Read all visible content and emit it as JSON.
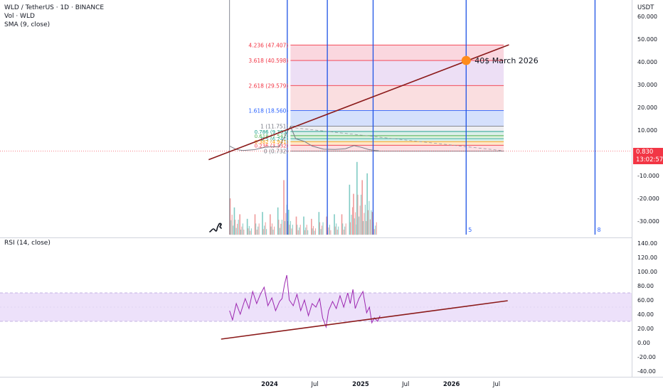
{
  "header": {
    "symbol_line": "WLD / TetherUS · 1D · BINANCE",
    "vol_line": "Vol · WLD",
    "sma_line": "SMA (9, close)",
    "currency": "USDT"
  },
  "price_badge": {
    "price": "0.830",
    "countdown": "13:02:57"
  },
  "rsi_header": "RSI (14, close)",
  "colors": {
    "fib_red": "#f23645",
    "fib_blue": "#2962ff",
    "trend": "#8b1a1a",
    "price": "#787b86",
    "vline": "#1e53e5",
    "marker": "#ff8c1a",
    "rsi": "#9c27b0",
    "rsi_band": "#ede1fa"
  },
  "chart_data": [
    {
      "type": "line",
      "title": "WLD / TetherUS · 1D · BINANCE",
      "yunit": "USDT",
      "ylim": [
        -36,
        65
      ],
      "yticks": [
        "60.000",
        "50.000",
        "40.000",
        "30.000",
        "20.000",
        "10.000",
        "0.830",
        "-10.000",
        "-20.000",
        "-30.000"
      ],
      "ytick_values": [
        60,
        50,
        40,
        30,
        20,
        10,
        0.83,
        -10,
        -20,
        -30
      ],
      "xticks": [
        "2024",
        "Jul",
        "2025",
        "Jul",
        "2026",
        "Jul"
      ],
      "xtick_dates": [
        "2024-01-01",
        "2024-07-01",
        "2025-01-01",
        "2025-07-01",
        "2026-01-01",
        "2026-07-01"
      ],
      "last_price": 0.83,
      "price_series": {
        "x": [
          "2023-07-24",
          "2023-08-20",
          "2023-09-15",
          "2023-11-01",
          "2023-12-15",
          "2024-01-20",
          "2024-02-10",
          "2024-03-10",
          "2024-03-25",
          "2024-04-15",
          "2024-05-20",
          "2024-06-20",
          "2024-08-05",
          "2024-09-20",
          "2024-11-01",
          "2024-12-05",
          "2025-01-05",
          "2025-02-01",
          "2025-03-01",
          "2025-03-15"
        ],
        "y": [
          3.0,
          1.5,
          1.0,
          1.4,
          2.5,
          2.7,
          2.8,
          9.0,
          11.6,
          6.2,
          5.0,
          3.0,
          1.6,
          1.5,
          1.8,
          3.2,
          2.4,
          1.5,
          1.0,
          0.9
        ]
      },
      "fibonacci": {
        "levels": [
          {
            "label": "4.236 (47.407)",
            "value": 47.407,
            "color": "#f23645"
          },
          {
            "label": "3.618 (40.598)",
            "value": 40.598,
            "color": "#f23645"
          },
          {
            "label": "2.618 (29.579)",
            "value": 29.579,
            "color": "#f23645"
          },
          {
            "label": "1.618 (18.560)",
            "value": 18.56,
            "color": "#2962ff"
          },
          {
            "label": "1 (11.751)",
            "value": 11.751,
            "color": "#787b86"
          },
          {
            "label": "0.786 (9.393)",
            "value": 9.393,
            "color": "#089981"
          },
          {
            "label": "0.618 (7.542)",
            "value": 7.542,
            "color": "#4caf50"
          },
          {
            "label": "0.5 (6.241)",
            "value": 6.241,
            "color": "#26a69a"
          },
          {
            "label": "0.382 (4.941)",
            "value": 4.941,
            "color": "#ff9800"
          },
          {
            "label": "0.236 (3.332)",
            "value": 3.332,
            "color": "#f23645"
          },
          {
            "label": "0 (0.732)",
            "value": 0.732,
            "color": "#787b86"
          }
        ],
        "x_start": "2024-03-25",
        "x_end": "2026-07-30"
      },
      "trendline": {
        "x": [
          "2023-05-01",
          "2026-08-20"
        ],
        "y": [
          -3.0,
          47.5
        ]
      },
      "annotation": {
        "text": "40$ March 2026",
        "x": "2026-03-01",
        "y": 40.6
      },
      "vertical_lines": [
        {
          "x": "2023-07-24",
          "color": "#787b86",
          "label": ""
        },
        {
          "x": "2024-03-12",
          "color": "#1e53e5",
          "label": ""
        },
        {
          "x": "2024-08-20",
          "color": "#1e53e5",
          "label": ""
        },
        {
          "x": "2025-02-20",
          "color": "#1e53e5",
          "label": ""
        },
        {
          "x": "2026-03-01",
          "color": "#1e53e5",
          "label": "5"
        },
        {
          "x": "2027-08-01",
          "color": "#1e53e5",
          "label": "8"
        }
      ],
      "volume": {
        "x": [
          "2023-07-24",
          "2023-08-10",
          "2023-09-01",
          "2023-10-01",
          "2023-11-01",
          "2023-12-01",
          "2024-01-01",
          "2024-02-01",
          "2024-02-25",
          "2024-03-15",
          "2024-04-15",
          "2024-05-15",
          "2024-06-15",
          "2024-07-15",
          "2024-08-15",
          "2024-09-15",
          "2024-10-15",
          "2024-11-15",
          "2024-12-01",
          "2024-12-15",
          "2025-01-05",
          "2025-01-25",
          "2025-02-15"
        ],
        "y": [
          -20,
          -24,
          -27,
          -29,
          -27,
          -26,
          -27,
          -24,
          -12,
          -25,
          -28,
          -28,
          -29,
          -26,
          -28,
          -27,
          -27,
          -14,
          -18,
          -4,
          -12,
          -9,
          -26
        ]
      }
    },
    {
      "type": "line",
      "title": "RSI (14, close)",
      "ylim": [
        -45,
        148
      ],
      "yticks": [
        "140.00",
        "120.00",
        "100.00",
        "80.00",
        "60.00",
        "40.00",
        "20.00",
        "0.00",
        "-20.00",
        "-40.00"
      ],
      "ytick_values": [
        140,
        120,
        100,
        80,
        60,
        40,
        20,
        0,
        -20,
        -40
      ],
      "band": [
        30,
        70
      ],
      "rsi": {
        "x": [
          "2023-07-24",
          "2023-08-05",
          "2023-08-20",
          "2023-09-05",
          "2023-09-25",
          "2023-10-10",
          "2023-10-25",
          "2023-11-10",
          "2023-11-25",
          "2023-12-10",
          "2023-12-25",
          "2024-01-10",
          "2024-01-25",
          "2024-02-10",
          "2024-02-20",
          "2024-03-01",
          "2024-03-10",
          "2024-03-20",
          "2024-04-05",
          "2024-04-20",
          "2024-05-05",
          "2024-05-20",
          "2024-06-05",
          "2024-06-20",
          "2024-07-05",
          "2024-07-20",
          "2024-08-01",
          "2024-08-15",
          "2024-08-25",
          "2024-09-10",
          "2024-09-25",
          "2024-10-10",
          "2024-10-25",
          "2024-11-10",
          "2024-11-20",
          "2024-12-01",
          "2024-12-10",
          "2024-12-25",
          "2025-01-10",
          "2025-01-25",
          "2025-02-05",
          "2025-02-15",
          "2025-02-25",
          "2025-03-10",
          "2025-03-20"
        ],
        "y": [
          45,
          32,
          55,
          40,
          62,
          48,
          72,
          55,
          68,
          78,
          52,
          63,
          45,
          58,
          62,
          82,
          95,
          60,
          52,
          68,
          45,
          60,
          38,
          55,
          50,
          62,
          35,
          22,
          45,
          58,
          48,
          66,
          50,
          70,
          55,
          75,
          48,
          62,
          72,
          42,
          50,
          28,
          35,
          30,
          38
        ]
      },
      "trendline": {
        "x": [
          "2023-06-20",
          "2026-08-15"
        ],
        "y": [
          5,
          59
        ]
      }
    }
  ]
}
